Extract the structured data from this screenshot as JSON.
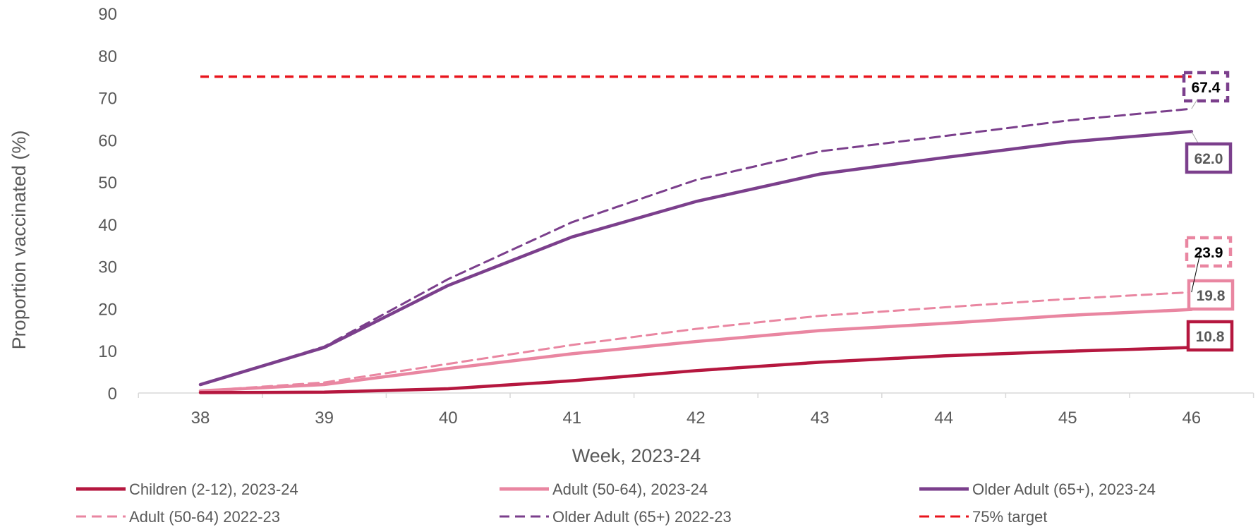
{
  "chart_data": {
    "type": "line",
    "xlabel": "Week, 2023-24",
    "ylabel": "Proportion  vaccinated (%)",
    "categories": [
      "38",
      "39",
      "40",
      "41",
      "42",
      "43",
      "44",
      "45",
      "46"
    ],
    "ylim": [
      0,
      90
    ],
    "yticks": [
      "0",
      "10",
      "20",
      "30",
      "40",
      "50",
      "60",
      "70",
      "80",
      "90"
    ],
    "grid": false,
    "legend_position": "bottom",
    "series": [
      {
        "name": "Children (2-12), 2023-24",
        "color": "#B5173F",
        "style": "solid",
        "values": [
          0.1,
          0.2,
          1.0,
          2.9,
          5.3,
          7.3,
          8.8,
          9.9,
          10.8
        ],
        "end_label": "10.8"
      },
      {
        "name": "Adult (50-64), 2023-24",
        "color": "#E986A1",
        "style": "solid",
        "values": [
          0.5,
          2.0,
          5.8,
          9.3,
          12.2,
          14.8,
          16.5,
          18.4,
          19.8
        ],
        "end_label": "19.8"
      },
      {
        "name": "Older Adult (65+), 2023-24",
        "color": "#7B3F8C",
        "style": "solid",
        "values": [
          2.0,
          10.8,
          25.5,
          37.0,
          45.4,
          51.9,
          55.8,
          59.5,
          62.0
        ],
        "end_label": "62.0"
      },
      {
        "name": "Adult (50-64) 2022-23",
        "color": "#E986A1",
        "style": "dashed",
        "values": [
          0.5,
          2.5,
          6.9,
          11.4,
          15.2,
          18.3,
          20.3,
          22.3,
          23.9
        ],
        "end_label": "23.9"
      },
      {
        "name": "Older Adult (65+) 2022-23",
        "color": "#7B3F8C",
        "style": "dashed",
        "values": [
          2.0,
          11.0,
          27.0,
          40.5,
          50.5,
          57.3,
          60.9,
          64.6,
          67.4
        ],
        "end_label": "67.4"
      },
      {
        "name": "75% target",
        "color": "#E8141C",
        "style": "dashed",
        "values": [
          75,
          75,
          75,
          75,
          75,
          75,
          75,
          75,
          75
        ]
      }
    ]
  }
}
